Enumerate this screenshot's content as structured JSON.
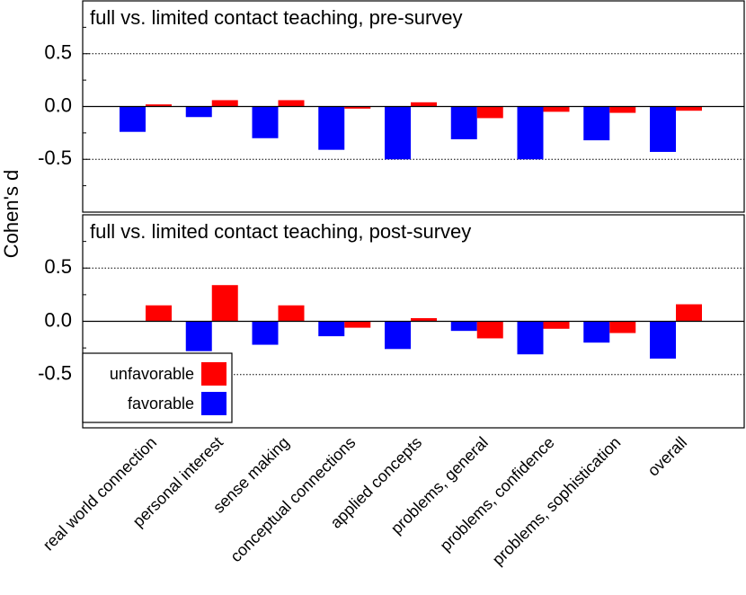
{
  "chart_data": [
    {
      "type": "bar",
      "title": "full vs. limited contact teaching, pre-survey",
      "ylabel": "Cohen's d",
      "series": [
        {
          "name": "favorable",
          "color": "#0000ff",
          "values": [
            -0.24,
            -0.1,
            -0.3,
            -0.41,
            -0.5,
            -0.31,
            -0.5,
            -0.32,
            -0.43
          ]
        },
        {
          "name": "unfavorable",
          "color": "#ff0000",
          "values": [
            0.02,
            0.06,
            0.06,
            -0.02,
            0.04,
            -0.11,
            -0.05,
            -0.06,
            -0.04
          ]
        }
      ],
      "ylim": [
        -1,
        1
      ],
      "yticks": [
        -0.5,
        {
          "value": 0,
          "label": "0.0"
        },
        0.5
      ],
      "yticks_minor": [
        -0.75,
        -0.25,
        0.25,
        0.75
      ],
      "grid": "dotted"
    },
    {
      "type": "bar",
      "title": "full vs. limited contact teaching, post-survey",
      "categories": [
        "real world connection",
        "personal interest",
        "sense making",
        "conceptual connections",
        "applied concepts",
        "problems, general",
        "problems, confidence",
        "problems, sophistication",
        "overall"
      ],
      "series": [
        {
          "name": "favorable",
          "color": "#0000ff",
          "values": [
            0,
            -0.28,
            -0.22,
            -0.14,
            -0.26,
            -0.09,
            -0.31,
            -0.2,
            -0.35
          ]
        },
        {
          "name": "unfavorable",
          "color": "#ff0000",
          "values": [
            0.15,
            0.34,
            0.15,
            -0.06,
            0.03,
            -0.16,
            -0.07,
            -0.11,
            0.16
          ]
        }
      ],
      "ylim": [
        -1,
        1
      ],
      "yticks": [
        -0.5,
        {
          "value": 0,
          "label": "0.0"
        },
        0.5
      ],
      "yticks_minor": [
        -0.75,
        -0.25,
        0.25,
        0.75
      ],
      "grid": "dotted",
      "legend": "lower left"
    }
  ]
}
